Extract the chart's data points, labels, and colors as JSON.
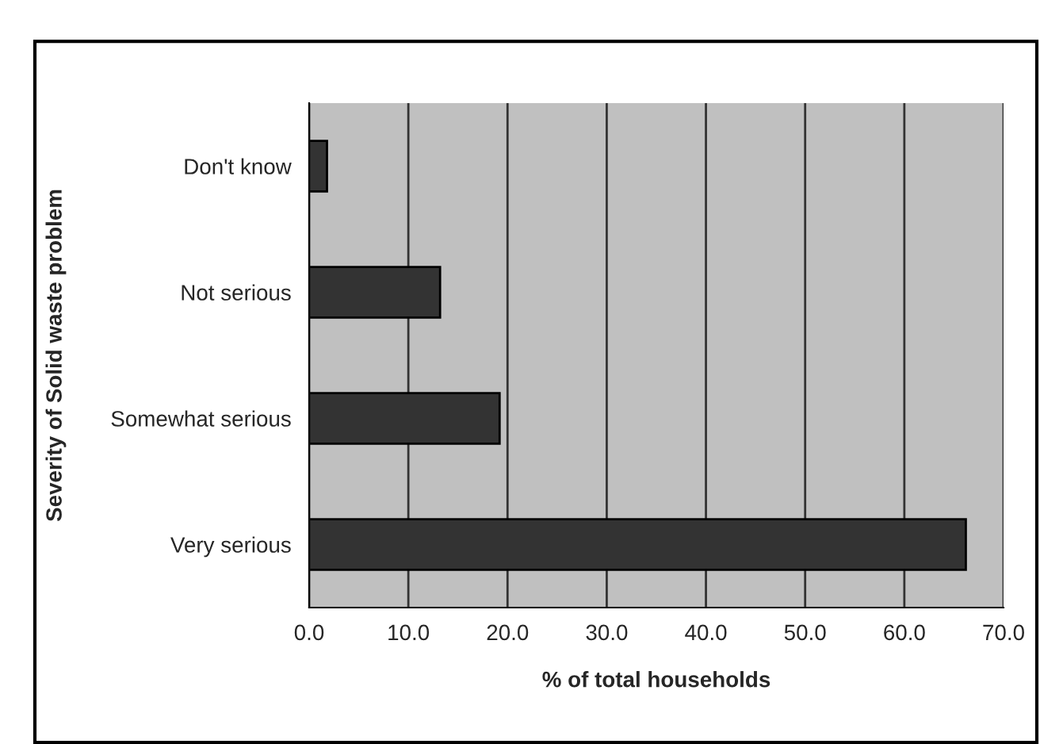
{
  "chart_data": {
    "type": "bar",
    "orientation": "horizontal",
    "xlabel": "% of total households",
    "ylabel": "Severity of Solid waste problem",
    "categories": [
      "Don't know",
      "Not serious",
      "Somewhat serious",
      "Very serious"
    ],
    "values": [
      1.8,
      13.2,
      19.2,
      66.2
    ],
    "color": "#333333",
    "xlim": [
      0,
      70
    ],
    "xticks": [
      {
        "value": 0,
        "label": "0.0"
      },
      {
        "value": 10,
        "label": "10.0"
      },
      {
        "value": 20,
        "label": "20.0"
      },
      {
        "value": 30,
        "label": "30.0"
      },
      {
        "value": 40,
        "label": "40.0"
      },
      {
        "value": 50,
        "label": "50.0"
      },
      {
        "value": 60,
        "label": "60.0"
      },
      {
        "value": 70,
        "label": "70.0"
      }
    ],
    "grid": "x",
    "legend": false
  }
}
